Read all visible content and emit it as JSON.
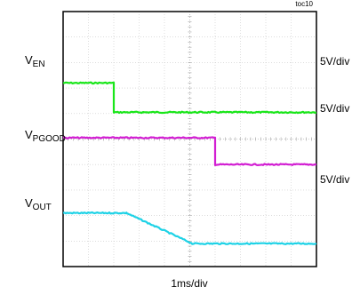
{
  "figure_tag": "toc10",
  "x_axis_label": "1ms/div",
  "chart_data": {
    "type": "line",
    "title": "",
    "xlabel": "1ms/div",
    "ylabel": "",
    "grid": true,
    "x_divisions": 10,
    "y_divisions": 10,
    "xlim_ms": [
      0,
      10
    ],
    "series": [
      {
        "name": "VEN",
        "label_main": "V",
        "label_sub": "EN",
        "scale": "5V/div",
        "color": "#19e619",
        "x": [
          0,
          2.0,
          2.0,
          10
        ],
        "y_div": [
          2.8,
          2.8,
          3.95,
          3.95
        ]
      },
      {
        "name": "VPGOOD",
        "label_main": "V",
        "label_sub": "PGOOD",
        "scale": "5V/div",
        "color": "#d21ed2",
        "x": [
          0,
          6.0,
          6.0,
          10
        ],
        "y_div": [
          4.95,
          4.95,
          6.0,
          6.0
        ]
      },
      {
        "name": "VOUT",
        "label_main": "V",
        "label_sub": "OUT",
        "scale": "5V/div",
        "color": "#1ed2e6",
        "x": [
          0,
          2.5,
          5.1,
          10
        ],
        "y_div": [
          7.9,
          7.9,
          9.1,
          9.1
        ]
      }
    ]
  }
}
